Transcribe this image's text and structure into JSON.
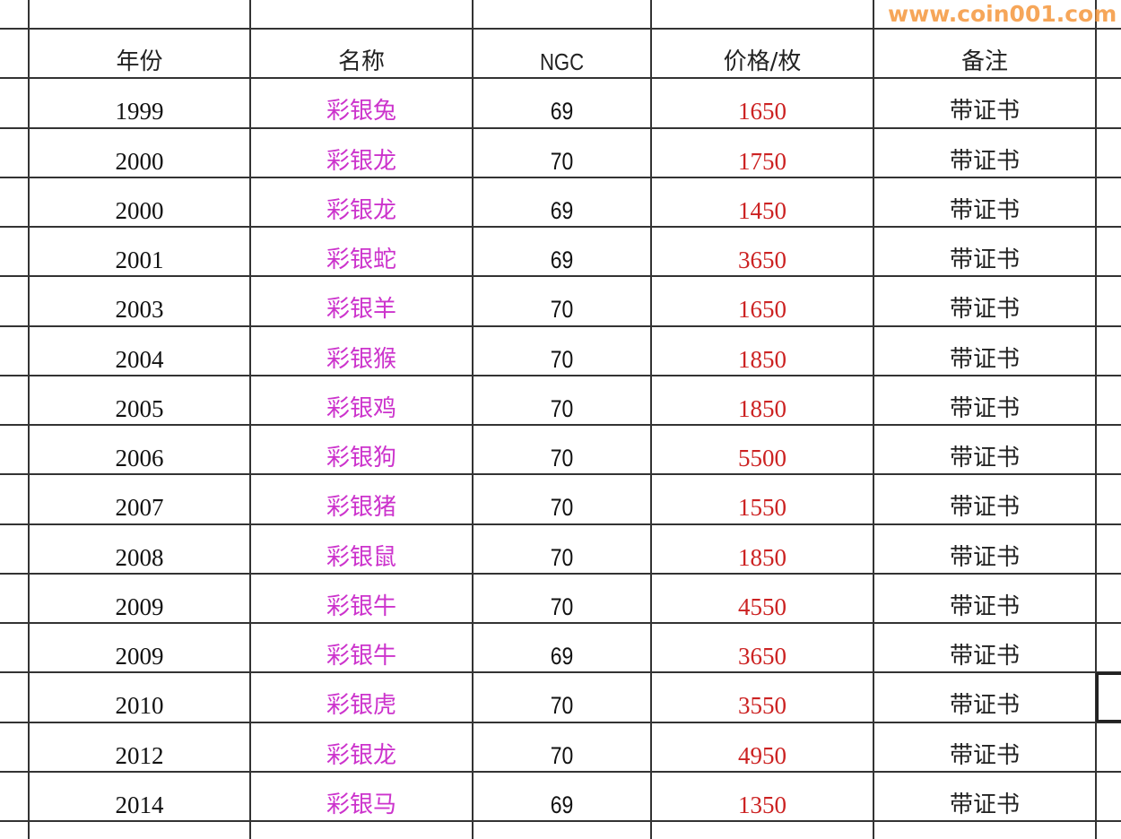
{
  "table": {
    "headers": [
      "年份",
      "名称",
      "NGC",
      "价格/枚",
      "备注"
    ],
    "rows": [
      [
        "1999",
        "彩银兔",
        "69",
        "1650",
        "带证书"
      ],
      [
        "2000",
        "彩银龙",
        "70",
        "1750",
        "带证书"
      ],
      [
        "2000",
        "彩银龙",
        "69",
        "1450",
        "带证书"
      ],
      [
        "2001",
        "彩银蛇",
        "69",
        "3650",
        "带证书"
      ],
      [
        "2003",
        "彩银羊",
        "70",
        "1650",
        "带证书"
      ],
      [
        "2004",
        "彩银猴",
        "70",
        "1850",
        "带证书"
      ],
      [
        "2005",
        "彩银鸡",
        "70",
        "1850",
        "带证书"
      ],
      [
        "2006",
        "彩银狗",
        "70",
        "5500",
        "带证书"
      ],
      [
        "2007",
        "彩银猪",
        "70",
        "1550",
        "带证书"
      ],
      [
        "2008",
        "彩银鼠",
        "70",
        "1850",
        "带证书"
      ],
      [
        "2009",
        "彩银牛",
        "70",
        "4550",
        "带证书"
      ],
      [
        "2009",
        "彩银牛",
        "69",
        "3650",
        "带证书"
      ],
      [
        "2010",
        "彩银虎",
        "70",
        "3550",
        "带证书"
      ],
      [
        "2012",
        "彩银龙",
        "70",
        "4950",
        "带证书"
      ],
      [
        "2014",
        "彩银马",
        "69",
        "1350",
        "带证书"
      ]
    ]
  },
  "colors": {
    "name_text": "#cc33cc",
    "price_text": "#cc2222",
    "grid": "#333333"
  },
  "watermark": "www.coin001.com"
}
